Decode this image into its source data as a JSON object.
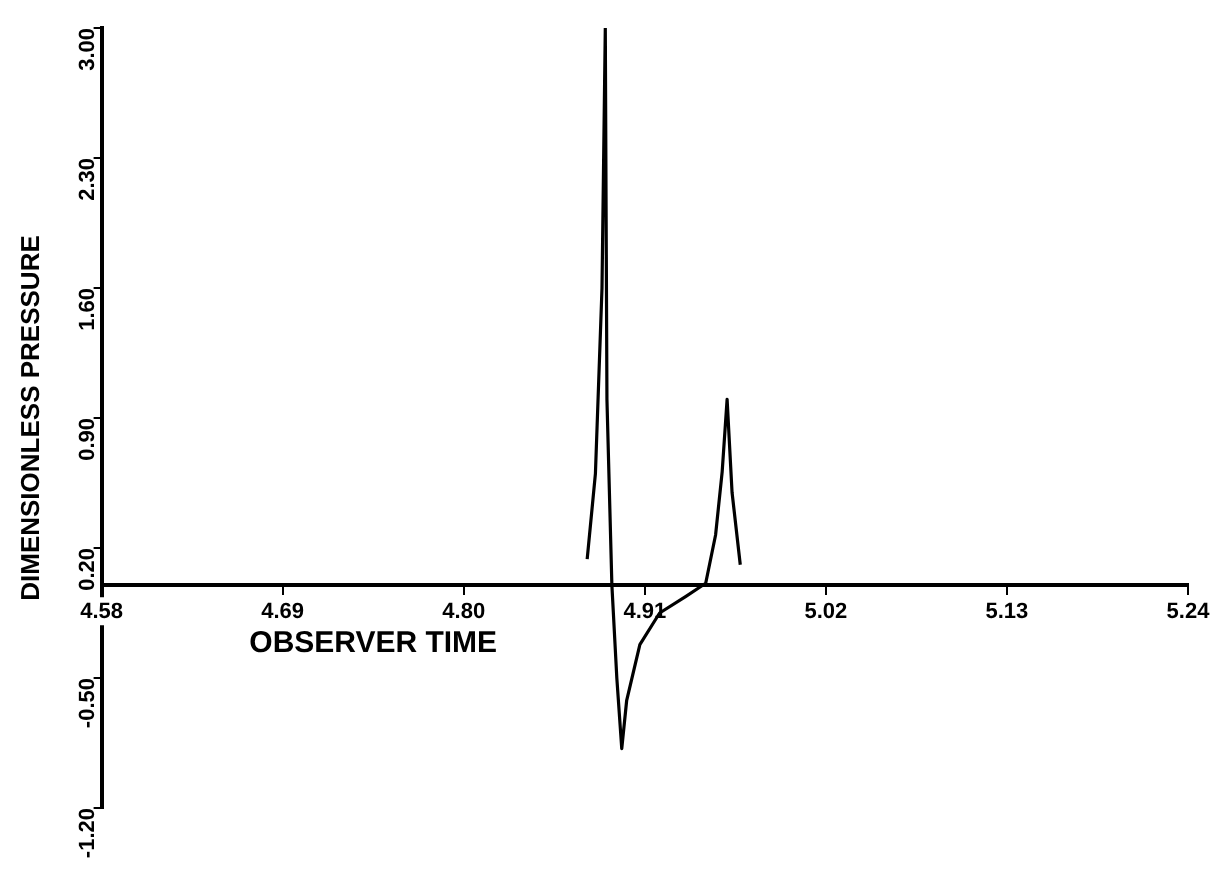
{
  "chart_data": {
    "type": "line",
    "xlabel": "OBSERVER TIME",
    "ylabel": "DIMENSIONLESS PRESSURE",
    "xlim": [
      4.58,
      5.24
    ],
    "xticks": [
      {
        "value": 4.58,
        "label": "4.58"
      },
      4.69,
      {
        "value": 4.8,
        "label": "4.80"
      },
      4.91,
      5.02,
      5.13,
      5.24
    ],
    "ylim": [
      -1.2,
      3.0
    ],
    "yticks": [
      {
        "value": -1.2,
        "label": "-1.20"
      },
      {
        "value": -0.5,
        "label": "-0.50"
      },
      {
        "value": 0.2,
        "label": "0.20"
      },
      {
        "value": 0.9,
        "label": "0.90"
      },
      {
        "value": 1.6,
        "label": "1.60"
      },
      {
        "value": 2.3,
        "label": "2.30"
      },
      {
        "value": 3.0,
        "label": "3.00"
      }
    ],
    "x": [
      4.875,
      4.88,
      4.884,
      4.886,
      4.887,
      4.89,
      4.893,
      4.896,
      4.899,
      4.907,
      4.919,
      4.935,
      4.947,
      4.953,
      4.957,
      4.96,
      4.963,
      4.968
    ],
    "series": [
      {
        "color": "#000000",
        "values": [
          0.14,
          0.6,
          1.6,
          3.0,
          1.0,
          0,
          -0.5,
          -0.88,
          -0.62,
          -0.32,
          -0.15,
          -0.06,
          0.01,
          0.27,
          0.61,
          1.0,
          0.5,
          0.11
        ]
      }
    ],
    "grid": false,
    "legend": false,
    "marker": "none",
    "line_style": "solid"
  }
}
